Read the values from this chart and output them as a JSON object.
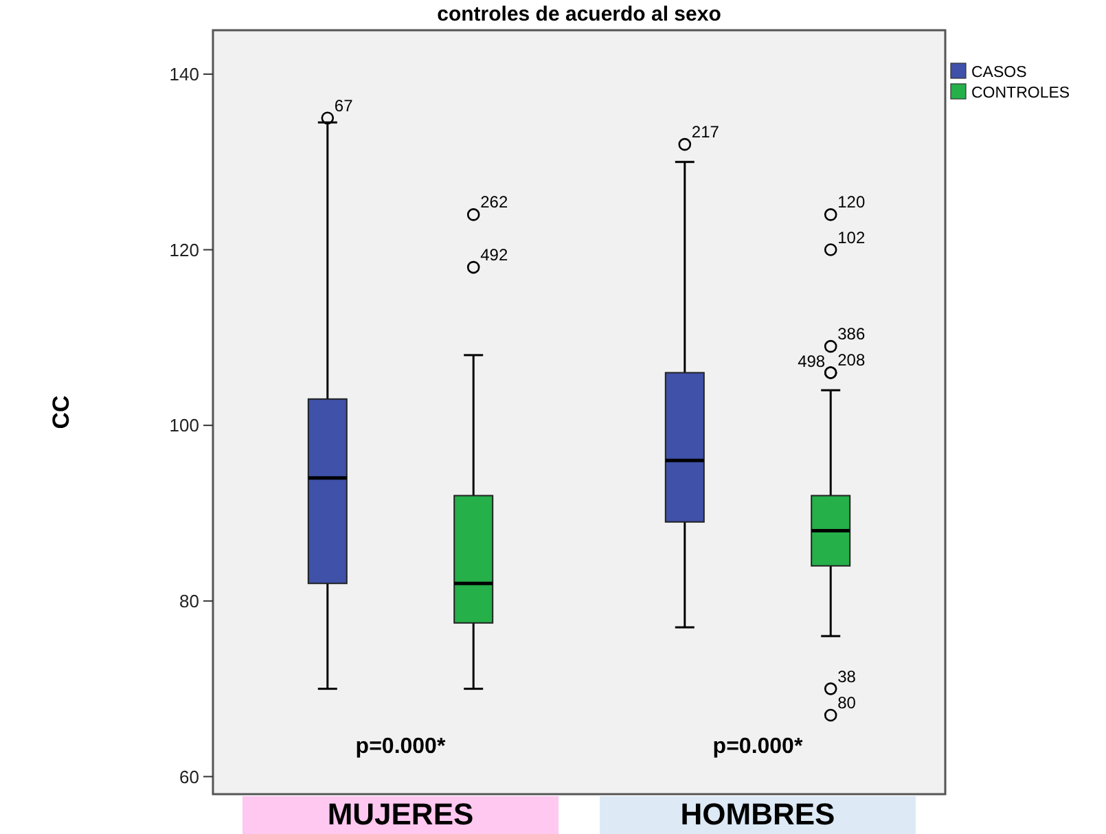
{
  "chart_data": {
    "type": "box",
    "title": "controles de acuerdo al sexo",
    "ylabel": "CC",
    "categories": [
      "MUJERES",
      "HOMBRES"
    ],
    "ylim": [
      58,
      145
    ],
    "yticks": [
      60,
      80,
      100,
      120,
      140
    ],
    "grid": false,
    "legend": "top right",
    "series": [
      {
        "name": "CASOS",
        "color": "#3f51a8",
        "boxes": [
          {
            "low": 70,
            "q1": 82,
            "median": 94,
            "q3": 103,
            "high": 134.5,
            "outliers": [
              135
            ]
          },
          {
            "low": 77,
            "q1": 89,
            "median": 96,
            "q3": 106,
            "high": 130,
            "outliers": [
              132
            ]
          }
        ]
      },
      {
        "name": "CONTROLES",
        "color": "#25b04a",
        "boxes": [
          {
            "low": 70,
            "q1": 77.5,
            "median": 82,
            "q3": 92,
            "high": 108,
            "outliers": [
              124,
              118
            ]
          },
          {
            "low": 76,
            "q1": 84,
            "median": 88,
            "q3": 92,
            "high": 104,
            "outliers": [
              124,
              120,
              109,
              106,
              106,
              70,
              67
            ]
          }
        ]
      }
    ],
    "annotations": [
      "67",
      "217",
      "262",
      "492",
      "120",
      "102",
      "386",
      "498",
      "208",
      "38",
      "80",
      "p=0.000*",
      "p=0.000*"
    ]
  }
}
